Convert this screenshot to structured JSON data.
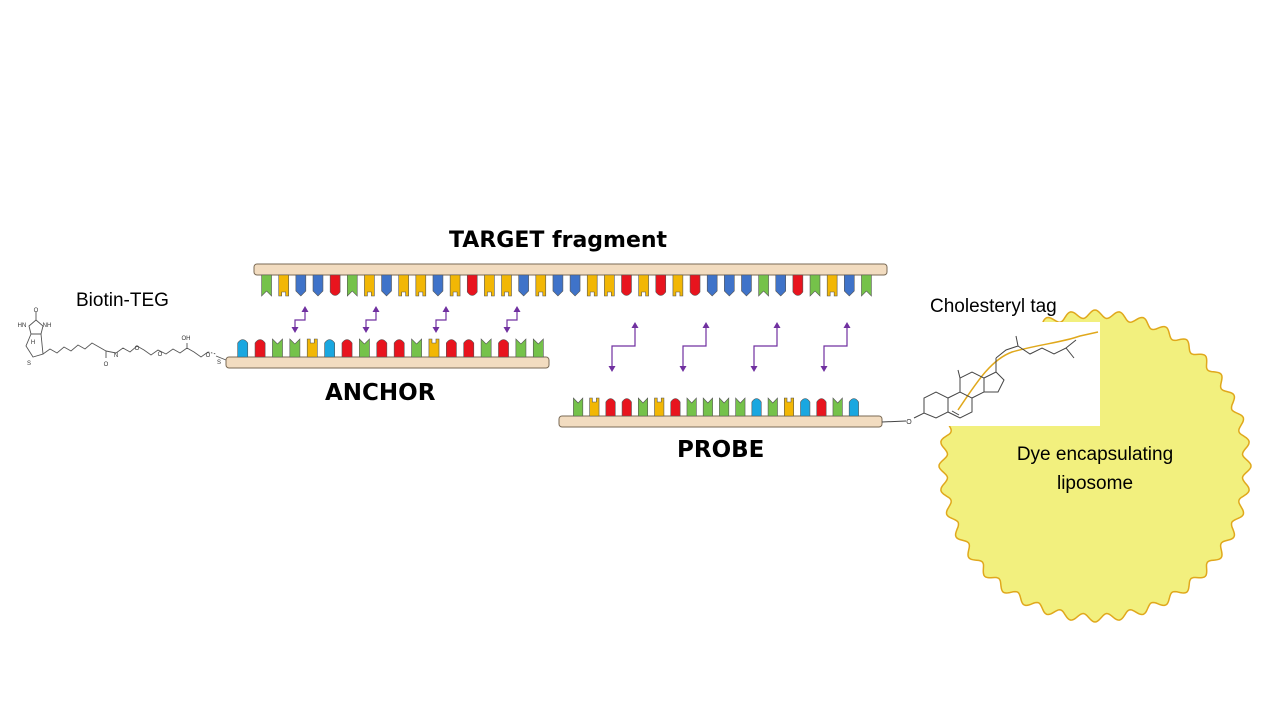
{
  "labels": {
    "target": "TARGET fragment",
    "anchor": "ANCHOR",
    "probe": "PROBE",
    "biotin": "Biotin-TEG",
    "cholesteryl": "Cholesteryl tag",
    "liposome": "Dye encapsulating liposome"
  },
  "molecule_text": {
    "biotin": [
      "O",
      "HN",
      "NH",
      "S",
      "H",
      "O",
      "N",
      "OH",
      "O",
      "O",
      "O",
      "S"
    ],
    "cholesterol": [
      "O"
    ]
  },
  "colors": {
    "strand_fill": "#f2dcc0",
    "strand_stroke": "#7a6a55",
    "arrow": "#7030a0",
    "liposome_fill": "#f2f07e",
    "liposome_stroke": "#e0a81c",
    "base_colors": {
      "G": "#75c24a",
      "Y": "#f2b705",
      "B": "#3f73c9",
      "R": "#e8141e",
      "C": "#19a7e0"
    }
  },
  "sequences": {
    "target": [
      "G",
      "Y",
      "B",
      "B",
      "R",
      "G",
      "Y",
      "B",
      "Y",
      "Y",
      "B",
      "Y",
      "R",
      "Y",
      "Y",
      "B",
      "Y",
      "B",
      "B",
      "Y",
      "Y",
      "R",
      "Y",
      "R",
      "Y",
      "R",
      "B",
      "B",
      "B",
      "G",
      "B",
      "R",
      "G",
      "Y",
      "B",
      "G"
    ],
    "anchor": [
      "C",
      "R",
      "G",
      "G",
      "Y",
      "C",
      "R",
      "G",
      "R",
      "R",
      "G",
      "Y",
      "R",
      "R",
      "G",
      "R",
      "G",
      "G"
    ],
    "probe": [
      "G",
      "Y",
      "R",
      "R",
      "G",
      "Y",
      "R",
      "G",
      "G",
      "G",
      "G",
      "C",
      "G",
      "Y",
      "C",
      "R",
      "G",
      "C"
    ]
  }
}
